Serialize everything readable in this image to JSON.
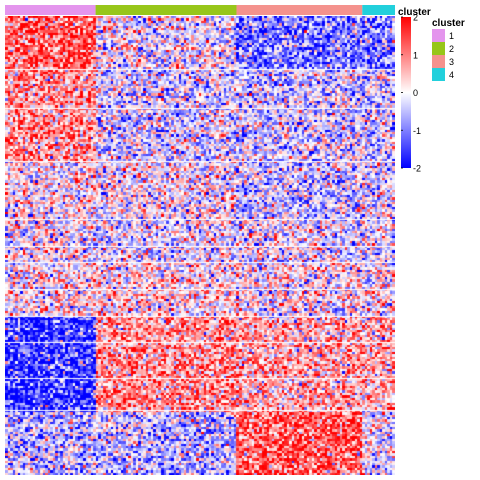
{
  "chart_data": {
    "type": "heatmap",
    "title": "",
    "xlabel": "",
    "ylabel": "",
    "annotation_track": {
      "label": "cluster",
      "columns_per_cluster": [
        {
          "cluster": "1",
          "count": 36
        },
        {
          "cluster": "2",
          "count": 56
        },
        {
          "cluster": "3",
          "count": 50
        },
        {
          "cluster": "4",
          "count": 13
        }
      ]
    },
    "row_block_pattern": {
      "note_rows": "relative row-group sizes and mean expression per cluster (z-score)",
      "blocks": [
        {
          "rows": 22,
          "means": [
            1.3,
            -0.1,
            -1.0,
            -1.0
          ]
        },
        {
          "rows": 38,
          "means": [
            0.8,
            -0.3,
            -0.3,
            -0.3
          ]
        },
        {
          "rows": 24,
          "means": [
            0.1,
            0.0,
            -0.4,
            -0.2
          ]
        },
        {
          "rows": 18,
          "means": [
            0.0,
            -0.2,
            -0.1,
            -0.2
          ]
        },
        {
          "rows": 22,
          "means": [
            0.1,
            0.2,
            0.1,
            0.1
          ]
        },
        {
          "rows": 40,
          "means": [
            -1.6,
            0.8,
            0.6,
            0.6
          ]
        },
        {
          "rows": 26,
          "means": [
            -0.5,
            -0.5,
            1.3,
            -0.2
          ]
        }
      ],
      "row_gaps_at": [
        22,
        38,
        60,
        84,
        95,
        102,
        113,
        124,
        135,
        150,
        163,
        190
      ]
    },
    "color_scale": {
      "min": -2,
      "max": 2,
      "ticks": [
        2,
        1,
        0,
        -1,
        -2
      ],
      "colors": {
        "low": "#0000ff",
        "mid": "#ffffff",
        "high": "#ff0000"
      }
    },
    "legend": {
      "title": "cluster",
      "entries": [
        {
          "label": "1",
          "color": "#e495ed"
        },
        {
          "label": "2",
          "color": "#97c61a"
        },
        {
          "label": "3",
          "color": "#f4928d"
        },
        {
          "label": "4",
          "color": "#22d0dc"
        }
      ]
    },
    "grid": false,
    "legend_placement": "right"
  }
}
